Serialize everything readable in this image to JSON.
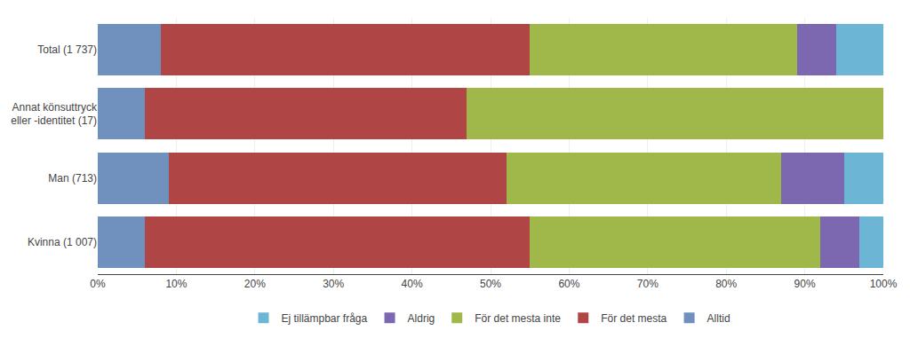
{
  "chart_data": {
    "type": "bar",
    "orientation": "horizontal",
    "stacked": true,
    "categories": [
      "Kvinna (1 007)",
      "Man (713)",
      "Annat könsuttryck\neller -identitet (17)",
      "Total (1 737)"
    ],
    "series": [
      {
        "name": "Alltid",
        "color": "#7090be",
        "values": [
          6,
          9,
          6,
          8
        ]
      },
      {
        "name": "För det mesta",
        "color": "#b04545",
        "values": [
          49,
          43,
          41,
          47
        ]
      },
      {
        "name": "För det mesta inte",
        "color": "#a0b84a",
        "values": [
          37,
          35,
          53,
          34
        ]
      },
      {
        "name": "Aldrig",
        "color": "#7b68b0",
        "values": [
          5,
          8,
          0,
          5
        ]
      },
      {
        "name": "Ej tillämpbar fråga",
        "color": "#6cb5d5",
        "values": [
          3,
          5,
          0,
          6
        ]
      }
    ],
    "xlim": [
      0,
      100
    ],
    "xticks": [
      {
        "value": 0,
        "label": "0%"
      },
      {
        "value": 10,
        "label": "10%"
      },
      {
        "value": 20,
        "label": "20%"
      },
      {
        "value": 30,
        "label": "30%"
      },
      {
        "value": 40,
        "label": "40%"
      },
      {
        "value": 50,
        "label": "50%"
      },
      {
        "value": 60,
        "label": "60%"
      },
      {
        "value": 70,
        "label": "70%"
      },
      {
        "value": 80,
        "label": "80%"
      },
      {
        "value": 90,
        "label": "90%"
      },
      {
        "value": 100,
        "label": "100%"
      }
    ],
    "grid": true,
    "legend": "bottom"
  }
}
